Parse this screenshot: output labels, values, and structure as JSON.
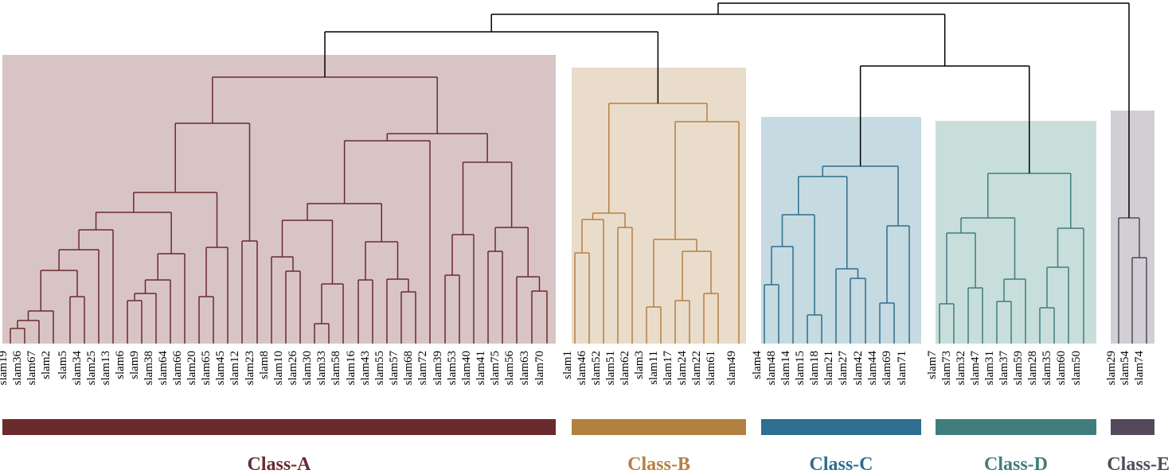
{
  "leaves": [
    "slam19",
    "slam36",
    "slam67",
    "slam2",
    "slam5",
    "slam34",
    "slam25",
    "slam13",
    "slam6",
    "slam9",
    "slam38",
    "slam64",
    "slam66",
    "slam20",
    "slam65",
    "slam45",
    "slam12",
    "slam23",
    "slam8",
    "slam10",
    "slam26",
    "slam30",
    "slam33",
    "slam58",
    "slam16",
    "slam43",
    "slam55",
    "slam57",
    "slam68",
    "slam72",
    "slam39",
    "slam53",
    "slam40",
    "slam41",
    "slam75",
    "slam56",
    "slam63",
    "slam70",
    "slam1",
    "slam46",
    "slam52",
    "slam51",
    "slam62",
    "slam3",
    "slam11",
    "slam17",
    "slam24",
    "slam22",
    "slam61",
    "slam49",
    "slam4",
    "slam48",
    "slam14",
    "slam15",
    "slam18",
    "slam21",
    "slam27",
    "slam42",
    "slam44",
    "slam69",
    "slam71",
    "slam7",
    "slam73",
    "slam32",
    "slam47",
    "slam31",
    "slam37",
    "slam59",
    "slam28",
    "slam35",
    "slam60",
    "slam50",
    "slam29",
    "slam54",
    "slam74"
  ],
  "classes": [
    {
      "name": "Class-A",
      "color": "#6b2a2c",
      "bg": "#d8c4c5",
      "first_leaf": 0,
      "last_leaf": 37
    },
    {
      "name": "Class-B",
      "color": "#b48040",
      "bg": "#eadccb",
      "first_leaf": 38,
      "last_leaf": 49
    },
    {
      "name": "Class-C",
      "color": "#2e6e8e",
      "bg": "#c6dae1",
      "first_leaf": 50,
      "last_leaf": 60
    },
    {
      "name": "Class-D",
      "color": "#3f7e7c",
      "bg": "#c8dedb",
      "first_leaf": 61,
      "last_leaf": 71
    },
    {
      "name": "Class-E",
      "color": "#54495c",
      "bg": "#d1ced4",
      "first_leaf": 72,
      "last_leaf": 74
    }
  ],
  "trunk_color": "#000000"
}
